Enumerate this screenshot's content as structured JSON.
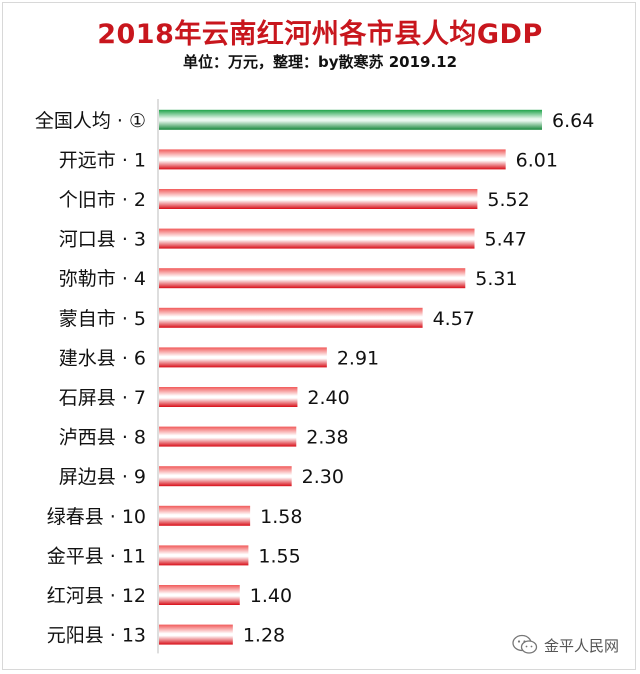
{
  "header": {
    "title": "2018年云南红河州各市县人均GDP",
    "subtitle": "单位：万元，整理：by散寒苏 2019.12"
  },
  "watermark": {
    "text": "金平人民网"
  },
  "colors": {
    "bar_highlight": "#1a9641",
    "bar_default": "#e8101a",
    "title": "#c8161d"
  },
  "chart_data": {
    "type": "bar",
    "orientation": "horizontal",
    "grid": false,
    "categories": [
      "全国人均 · ①",
      "开远市 · 1",
      "个旧市 · 2",
      "河口县 · 3",
      "弥勒市 · 4",
      "蒙自市 · 5",
      "建水县 · 6",
      "石屏县 · 7",
      "泸西县 · 8",
      "屏边县 · 9",
      "绿春县 · 10",
      "金平县 · 11",
      "红河县 · 12",
      "元阳县 · 13"
    ],
    "values": [
      6.64,
      6.01,
      5.52,
      5.47,
      5.31,
      4.57,
      2.91,
      2.4,
      2.38,
      2.3,
      1.58,
      1.55,
      1.4,
      1.28
    ],
    "value_labels": [
      "6.64",
      "6.01",
      "5.52",
      "5.47",
      "5.31",
      "4.57",
      "2.91",
      "2.40",
      "2.38",
      "2.30",
      "1.58",
      "1.55",
      "1.40",
      "1.28"
    ],
    "highlight_index": 0,
    "xlim": [
      0,
      6.64
    ],
    "title": "2018年云南红河州各市县人均GDP"
  }
}
